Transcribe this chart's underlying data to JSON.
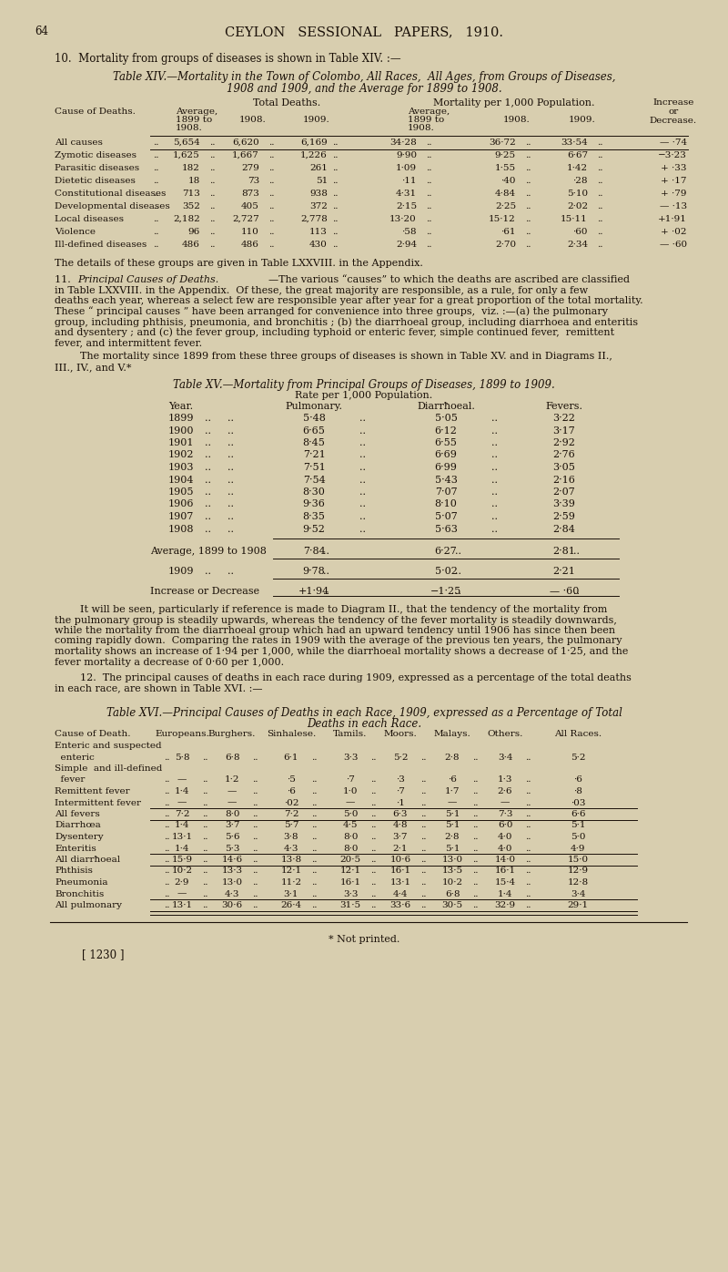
{
  "bg_color": "#d8ceaf",
  "text_color": "#1a1008",
  "page_number": "64",
  "header": "CEYLON   SESSIONAL   PAPERS,   1910.",
  "section10_intro": "10.  Mortality from groups of diseases is shown in Table XIV. :—",
  "table14_title_line1": "Table XIV.—Mortality in the Town of Colombo, All Races,  All Ages, from Groups of Diseases,",
  "table14_title_line2": "1908 and 1909, and the Average for 1899 to 1908.",
  "table14_rows": [
    [
      "All causes",
      "5,654",
      "6,620",
      "6,169",
      "34·28",
      "36·72",
      "33·54",
      "— ·74"
    ],
    [
      "Zymotic diseases",
      "1,625",
      "1,667",
      "1,226",
      "9·90",
      "9·25",
      "6·67",
      "−3·23"
    ],
    [
      "Parasitic diseases",
      "182",
      "279",
      "261",
      "1·09",
      "1·55",
      "1·42",
      "+ ·33"
    ],
    [
      "Dietetic diseases",
      "18",
      "73",
      "51",
      "·11",
      "·40",
      "·28",
      "+ ·17"
    ],
    [
      "Constitutional diseases",
      "713",
      "873",
      "938",
      "4·31",
      "4·84",
      "5·10",
      "+ ·79"
    ],
    [
      "Developmental diseases",
      "352",
      "405",
      "372",
      "2·15",
      "2·25",
      "2·02",
      "— ·13"
    ],
    [
      "Local diseases",
      "2,182",
      "2,727",
      "2,778",
      "13·20",
      "15·12",
      "15·11",
      "+1·91"
    ],
    [
      "Violence",
      "96",
      "110",
      "113",
      "·58",
      "·61",
      "·60",
      "+ ·02"
    ],
    [
      "Ill-defined diseases",
      "486",
      "486",
      "430",
      "2·94",
      "2·70",
      "2·34",
      "— ·60"
    ]
  ],
  "para_after14": "The details of these groups are given in Table LXXVIII. in the Appendix.",
  "table15_rows": [
    [
      "1899",
      "5·48",
      "5·05",
      "3·22"
    ],
    [
      "1900",
      "6·65",
      "6·12",
      "3·17"
    ],
    [
      "1901",
      "8·45",
      "6·55",
      "2·92"
    ],
    [
      "1902",
      "7·21",
      "6·69",
      "2·76"
    ],
    [
      "1903",
      "7·51",
      "6·99",
      "3·05"
    ],
    [
      "1904",
      "7·54",
      "5·43",
      "2·16"
    ],
    [
      "1905",
      "8·30",
      "7·07",
      "2·07"
    ],
    [
      "1906",
      "9·36",
      "8·10",
      "3·39"
    ],
    [
      "1907",
      "8·35",
      "5·07",
      "2·59"
    ],
    [
      "1908",
      "9·52",
      "5·63",
      "2·84"
    ]
  ],
  "table15_avg_row": [
    "Average, 1899 to 1908",
    "7·84",
    "6·27",
    "2·81"
  ],
  "table15_1909_row": [
    "1909",
    "9·78",
    "5·02",
    "2·21"
  ],
  "table15_incr_row": [
    "Increase or Decrease",
    "+1·94",
    "−1·25",
    "— ·60"
  ],
  "section11_text3_lines": [
    "        It will be seen, particularly if reference is made to Diagram II., that the tendency of the mortality from",
    "the pulmonary group is steadily upwards, whereas the tendency of the fever mortality is steadily downwards,",
    "while the mortality from the diarrhoeal group which had an upward tendency until 1906 has since then been",
    "coming rapidly down.  Comparing the rates in 1909 with the average of the previous ten years, the pulmonary",
    "mortality shows an increase of 1·94 per 1,000, while the diarrhoeal mortality shows a decrease of 1·25, and the",
    "fever mortality a decrease of 0·60 per 1,000."
  ],
  "section12_lines": [
    "        12.  The principal causes of deaths in each race during 1909, expressed as a percentage of the total deaths",
    "in each race, are shown in Table XVI. :—"
  ],
  "table16_col_headers": [
    "Cause of Death.",
    "Europeans.",
    "Burghers.",
    "Sinhalese.",
    "Tamils.",
    "Moors.",
    "Malays.",
    "Others.",
    "All Races."
  ],
  "table16_rows_data": [
    [
      "Enteric and suspected",
      null,
      null,
      null,
      null,
      null,
      null,
      null,
      null
    ],
    [
      "  enteric",
      "5·8",
      "6·8",
      "6·1",
      "3·3",
      "5·2",
      "2·8",
      "3·4",
      "5·2"
    ],
    [
      "Simple  and ill-defined",
      null,
      null,
      null,
      null,
      null,
      null,
      null,
      null
    ],
    [
      "  fever",
      "—",
      "1·2",
      "·5",
      "·7",
      "·3",
      "·6",
      "1·3",
      "·6"
    ],
    [
      "Remittent fever",
      "1·4",
      "—",
      "·6",
      "1·0",
      "·7",
      "1·7",
      "2·6",
      "·8"
    ],
    [
      "Intermittent fever",
      "—",
      "—",
      "·02",
      "—",
      "·1",
      "—",
      "—",
      "·03"
    ],
    [
      "All fevers",
      "7·2",
      "8·0",
      "7·2",
      "5·0",
      "6·3",
      "5·1",
      "7·3",
      "6·6"
    ],
    [
      "Diarrhœa",
      "1·4",
      "3·7",
      "5·7",
      "4·5",
      "4·8",
      "5·1",
      "6·0",
      "5·1"
    ],
    [
      "Dysentery",
      "13·1",
      "5·6",
      "3·8",
      "8·0",
      "3·7",
      "2·8",
      "4·0",
      "5·0"
    ],
    [
      "Enteritis",
      "1·4",
      "5·3",
      "4·3",
      "8·0",
      "2·1",
      "5·1",
      "4·0",
      "4·9"
    ],
    [
      "All diarrħoeal",
      "15·9",
      "14·6",
      "13·8",
      "20·5",
      "10·6",
      "13·0",
      "14·0",
      "15·0"
    ],
    [
      "Phthisis",
      "10·2",
      "13·3",
      "12·1",
      "12·1",
      "16·1",
      "13·5",
      "16·1",
      "12·9"
    ],
    [
      "Pneumonia",
      "2·9",
      "13·0",
      "11·2",
      "16·1",
      "13·1",
      "10·2",
      "15·4",
      "12·8"
    ],
    [
      "Bronchitis",
      "—",
      "4·3",
      "3·1",
      "3·3",
      "4·4",
      "6·8",
      "1·4",
      "3·4"
    ],
    [
      "All pulmonary",
      "13·1",
      "30·6",
      "26·4",
      "31·5",
      "33·6",
      "30·5",
      "32·9",
      "29·1"
    ]
  ],
  "footer": "[ 1230 ]",
  "footnote": "* Not printed."
}
